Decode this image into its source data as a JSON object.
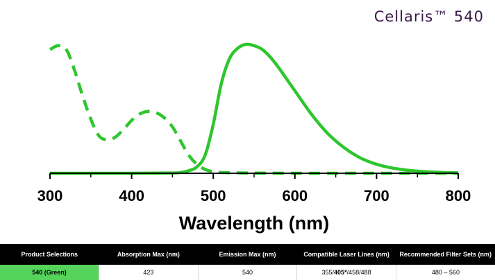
{
  "brand": {
    "title": "Cellaris™ 540"
  },
  "colors": {
    "curve": "#2ec62e",
    "header_bg": "#000000",
    "selection_bg": "#55d35a",
    "brand": "#3a1a47"
  },
  "chart_data": {
    "type": "line",
    "title": "",
    "xlabel": "Wavelength (nm)",
    "ylabel": "",
    "xlim": [
      300,
      800
    ],
    "ylim": [
      0,
      1
    ],
    "xticks": [
      300,
      400,
      500,
      600,
      700,
      800
    ],
    "grid": false,
    "series": [
      {
        "style": "dashed",
        "x": [
          300,
          310,
          320,
          330,
          340,
          350,
          360,
          370,
          380,
          390,
          400,
          410,
          420,
          430,
          440,
          450,
          460,
          470,
          480,
          490,
          500,
          510,
          520,
          540,
          560,
          600,
          650,
          700,
          750,
          800
        ],
        "y": [
          0.96,
          0.99,
          0.96,
          0.8,
          0.6,
          0.42,
          0.29,
          0.26,
          0.28,
          0.34,
          0.41,
          0.46,
          0.48,
          0.47,
          0.43,
          0.36,
          0.25,
          0.14,
          0.07,
          0.03,
          0.012,
          0.006,
          0.004,
          0.002,
          0.001,
          0.0,
          0.0,
          0.0,
          0.0,
          0.0
        ]
      },
      {
        "style": "solid",
        "x": [
          300,
          400,
          450,
          460,
          470,
          480,
          490,
          500,
          510,
          520,
          530,
          540,
          550,
          560,
          570,
          580,
          590,
          600,
          620,
          640,
          660,
          680,
          700,
          720,
          740,
          760,
          780,
          800
        ],
        "y": [
          0.0,
          0.0,
          0.002,
          0.006,
          0.02,
          0.05,
          0.14,
          0.38,
          0.7,
          0.89,
          0.97,
          1.0,
          0.99,
          0.96,
          0.9,
          0.82,
          0.73,
          0.64,
          0.46,
          0.31,
          0.2,
          0.12,
          0.07,
          0.04,
          0.022,
          0.012,
          0.006,
          0.003
        ]
      }
    ]
  },
  "table": {
    "headers": [
      "Product Selections",
      "Absorption Max (nm)",
      "Emission Max (nm)",
      "Compatible Laser Lines (nm)",
      "Recommended Filter Sets (nm)"
    ],
    "row": {
      "product": "540 (Green)",
      "absorption": "423",
      "emission": "540",
      "laser_lines": {
        "before": "355/",
        "bold": "405*",
        "after": "/458/488"
      },
      "filter_sets": "480 – 560"
    }
  }
}
